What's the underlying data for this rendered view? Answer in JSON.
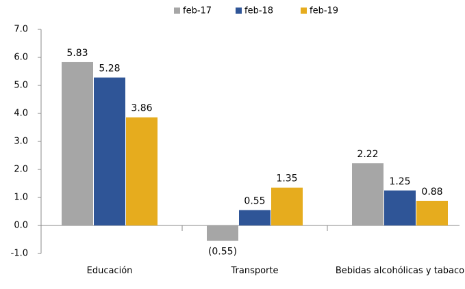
{
  "chart_data": {
    "type": "bar",
    "categories": [
      "Educación",
      "Transporte",
      "Bebidas alcohólicas y tabaco"
    ],
    "series": [
      {
        "name": "feb-17",
        "color": "#a6a6a6",
        "values": [
          5.83,
          -0.55,
          2.22
        ],
        "value_labels": [
          "5.83",
          "(0.55)",
          "2.22"
        ]
      },
      {
        "name": "feb-18",
        "color": "#2f5597",
        "values": [
          5.28,
          0.55,
          1.25
        ]
      },
      {
        "name": "feb-19",
        "color": "#e6ac1e",
        "values": [
          3.86,
          1.35,
          0.88
        ]
      }
    ],
    "ylim": [
      -1,
      7
    ],
    "yticks": [
      {
        "value": -1,
        "label": "-1.0"
      },
      {
        "value": 0,
        "label": "0.0"
      },
      {
        "value": 1,
        "label": "1.0"
      },
      {
        "value": 2,
        "label": "2.0"
      },
      {
        "value": 3,
        "label": "3.0"
      },
      {
        "value": 4,
        "label": "4.0"
      },
      {
        "value": 5,
        "label": "5.0"
      },
      {
        "value": 6,
        "label": "6.0"
      },
      {
        "value": 7,
        "label": "7.0"
      }
    ],
    "grid": false,
    "legend": "top"
  }
}
